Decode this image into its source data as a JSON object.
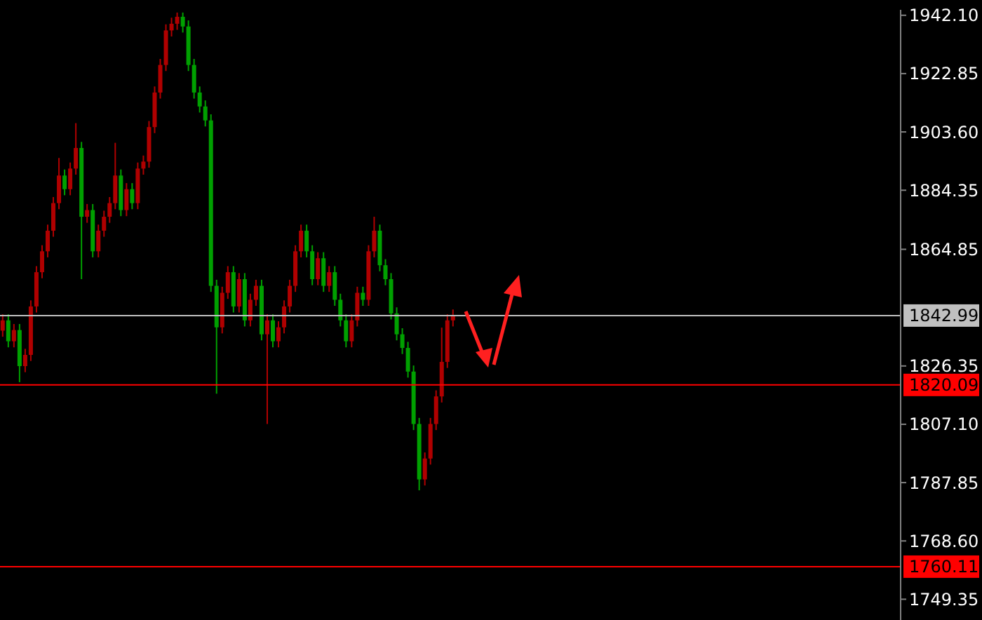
{
  "chart_data": {
    "type": "candlestick",
    "tick_labels": "y",
    "ylim": [
      1742.5,
      1943.9
    ],
    "yticks": [
      {
        "value": 1942.1,
        "label": "1942.10"
      },
      {
        "value": 1922.85,
        "label": "1922.85"
      },
      {
        "value": 1903.6,
        "label": "1903.60"
      },
      {
        "value": 1884.35,
        "label": "1884.35"
      },
      {
        "value": 1864.85,
        "label": "1864.85"
      },
      {
        "value": 1826.35,
        "label": "1826.35"
      },
      {
        "value": 1807.1,
        "label": "1807.10"
      },
      {
        "value": 1787.85,
        "label": "1787.85"
      },
      {
        "value": 1768.6,
        "label": "1768.60"
      },
      {
        "value": 1749.35,
        "label": "1749.35"
      }
    ],
    "ref_lines": [
      {
        "axis": "y",
        "value": 1842.99,
        "label": "1842.99",
        "color": "#c0c0c0"
      },
      {
        "axis": "y",
        "value": 1820.09,
        "label": "1820.09",
        "color": "#ff0000"
      },
      {
        "axis": "y",
        "value": 1760.11,
        "label": "1760.11",
        "color": "#ff0000"
      }
    ],
    "categories": [
      null,
      null,
      null,
      null,
      null,
      null,
      null,
      null,
      null,
      null,
      null,
      null,
      null,
      null,
      null,
      null,
      null,
      null,
      null,
      null,
      null,
      null,
      null,
      null,
      null,
      null,
      null,
      null,
      null,
      null,
      null,
      null,
      null,
      null,
      null,
      null,
      null,
      null,
      null,
      null,
      null,
      null,
      null,
      null,
      null,
      null,
      null,
      null,
      null,
      null,
      null,
      null,
      null,
      null,
      null,
      null,
      null,
      null,
      null,
      null,
      null,
      null,
      null,
      null,
      null,
      null,
      null,
      null,
      null,
      null,
      null,
      null,
      null,
      null,
      null,
      null,
      null,
      null,
      null,
      null,
      null,
      null,
      null,
      null,
      null,
      null,
      null,
      null,
      null,
      null,
      null,
      null,
      null,
      null,
      null,
      null,
      null,
      null,
      null,
      null,
      null,
      null,
      null,
      null,
      null,
      null,
      null,
      null,
      null,
      null,
      null,
      null,
      null,
      null,
      null,
      null,
      null,
      null,
      null,
      null,
      null,
      null,
      null,
      null,
      null,
      null,
      null,
      null,
      null,
      null,
      null,
      null,
      null,
      null,
      null,
      null,
      null,
      null,
      null,
      null,
      null,
      null,
      null,
      null,
      null,
      null,
      null,
      null,
      null,
      null,
      null,
      null,
      null,
      null,
      null,
      null,
      null,
      null,
      null,
      null
    ],
    "ohlc": [
      [
        1838,
        1843.4,
        1836,
        1841.4
      ],
      [
        1841.4,
        1843.4,
        1832.5,
        1834.5
      ],
      [
        1834.5,
        1840.2,
        1832.5,
        1838.2
      ],
      [
        1838.2,
        1840.2,
        1821,
        1826.3
      ],
      [
        1826.3,
        1832,
        1824.3,
        1830
      ],
      [
        1830,
        1848,
        1828,
        1846
      ],
      [
        1846,
        1859.3,
        1844,
        1857.3
      ],
      [
        1857.3,
        1866.2,
        1855.3,
        1864.2
      ],
      [
        1864.2,
        1873,
        1862.2,
        1871
      ],
      [
        1871,
        1882.1,
        1869,
        1880.1
      ],
      [
        1880.1,
        1895,
        1878.1,
        1889.2
      ],
      [
        1889.2,
        1891.2,
        1882.7,
        1884.7
      ],
      [
        1884.7,
        1893.5,
        1882.7,
        1891.5
      ],
      [
        1891.5,
        1906.5,
        1889.5,
        1898.3
      ],
      [
        1898.3,
        1900.3,
        1855,
        1875.6
      ],
      [
        1875.6,
        1879.8,
        1873.6,
        1877.8
      ],
      [
        1877.8,
        1879.8,
        1862.2,
        1864.2
      ],
      [
        1864.2,
        1873,
        1862.2,
        1871
      ],
      [
        1871,
        1877.6,
        1869,
        1875.6
      ],
      [
        1875.6,
        1882.1,
        1873.6,
        1880.1
      ],
      [
        1880.1,
        1900,
        1878.1,
        1889.2
      ],
      [
        1889.2,
        1891.2,
        1875.8,
        1877.8
      ],
      [
        1877.8,
        1886.7,
        1875.8,
        1884.7
      ],
      [
        1884.7,
        1886.7,
        1878.1,
        1880.1
      ],
      [
        1880.1,
        1893.5,
        1878.1,
        1891.5
      ],
      [
        1891.5,
        1895.8,
        1889.5,
        1893.8
      ],
      [
        1893.8,
        1907.2,
        1891.8,
        1905.2
      ],
      [
        1905.2,
        1918.6,
        1903.2,
        1916.6
      ],
      [
        1916.6,
        1927.7,
        1914.6,
        1925.7
      ],
      [
        1925.7,
        1939.1,
        1923.7,
        1937.1
      ],
      [
        1937.1,
        1941.3,
        1935.1,
        1939.3
      ],
      [
        1939.3,
        1943,
        1937.3,
        1941.6
      ],
      [
        1941.6,
        1943,
        1936.4,
        1938.4
      ],
      [
        1938.4,
        1940.4,
        1923.7,
        1925.7
      ],
      [
        1925.7,
        1927.7,
        1914.6,
        1916.6
      ],
      [
        1916.6,
        1918.6,
        1910,
        1912
      ],
      [
        1912,
        1914,
        1905.4,
        1907.4
      ],
      [
        1907.4,
        1909.4,
        1850.8,
        1852.8
      ],
      [
        1852.8,
        1854.8,
        1817.2,
        1839.1
      ],
      [
        1839.1,
        1852.5,
        1837.1,
        1850.5
      ],
      [
        1850.5,
        1859.3,
        1848.5,
        1857.3
      ],
      [
        1857.3,
        1859.3,
        1844,
        1846
      ],
      [
        1846,
        1857,
        1844,
        1855
      ],
      [
        1855,
        1857,
        1839.4,
        1841.4
      ],
      [
        1841.4,
        1850.2,
        1839.4,
        1848.2
      ],
      [
        1848.2,
        1854.8,
        1846.2,
        1852.8
      ],
      [
        1852.8,
        1854.8,
        1834.8,
        1836.8
      ],
      [
        1836.8,
        1843.4,
        1807.2,
        1841.4
      ],
      [
        1841.4,
        1843.4,
        1832.5,
        1834.5
      ],
      [
        1834.5,
        1841.1,
        1832.5,
        1839.1
      ],
      [
        1839.1,
        1848,
        1837.1,
        1846
      ],
      [
        1846,
        1854.8,
        1844,
        1852.8
      ],
      [
        1852.8,
        1866.2,
        1850.8,
        1864.2
      ],
      [
        1864.2,
        1873,
        1862.2,
        1871
      ],
      [
        1871,
        1873,
        1862.2,
        1864.2
      ],
      [
        1864.2,
        1866.2,
        1853,
        1855
      ],
      [
        1855,
        1863.9,
        1853,
        1861.9
      ],
      [
        1861.9,
        1863.9,
        1850.8,
        1852.8
      ],
      [
        1852.8,
        1859.3,
        1850.8,
        1857.3
      ],
      [
        1857.3,
        1859.3,
        1846.2,
        1848.2
      ],
      [
        1848.2,
        1850.2,
        1839.4,
        1841.4
      ],
      [
        1841.4,
        1843.4,
        1832.5,
        1834.5
      ],
      [
        1834.5,
        1843.4,
        1832.5,
        1841.4
      ],
      [
        1841.4,
        1852.5,
        1839.4,
        1850.5
      ],
      [
        1850.5,
        1852.5,
        1846.2,
        1848.2
      ],
      [
        1848.2,
        1866.2,
        1846.2,
        1864.2
      ],
      [
        1864.2,
        1875.6,
        1862.2,
        1871
      ],
      [
        1871,
        1873,
        1857.6,
        1859.6
      ],
      [
        1859.6,
        1861.6,
        1853,
        1855
      ],
      [
        1855,
        1857,
        1841.7,
        1843.7
      ],
      [
        1843.7,
        1845.7,
        1834.8,
        1836.8
      ],
      [
        1836.8,
        1838.8,
        1830.3,
        1832.3
      ],
      [
        1832.3,
        1834.3,
        1822.5,
        1824.5
      ],
      [
        1824.5,
        1826.5,
        1805.2,
        1807.2
      ],
      [
        1807.2,
        1809.2,
        1785.3,
        1788.9
      ],
      [
        1788.9,
        1797.8,
        1786.9,
        1795.8
      ],
      [
        1795.8,
        1809.2,
        1793.8,
        1807.2
      ],
      [
        1807.2,
        1818.3,
        1805.2,
        1816.3
      ],
      [
        1816.3,
        1839,
        1814.3,
        1827.7
      ],
      [
        1827.7,
        1843.4,
        1825.7,
        1841.4
      ],
      [
        1841.4,
        1845,
        1839.4,
        1842.99
      ],
      null,
      null,
      null,
      null,
      null,
      null,
      null,
      null,
      null,
      null,
      null,
      null,
      null,
      null,
      null,
      null,
      null,
      null,
      null,
      null,
      null,
      null,
      null,
      null,
      null,
      null,
      null,
      null,
      null,
      null,
      null,
      null,
      null,
      null,
      null,
      null,
      null,
      null,
      null,
      null,
      null,
      null,
      null,
      null,
      null,
      null,
      null,
      null,
      null,
      null,
      null,
      null,
      null,
      null,
      null,
      null,
      null,
      null,
      null,
      null,
      null,
      null,
      null,
      null,
      null,
      null,
      null,
      null,
      null,
      null,
      null,
      null,
      null,
      null,
      null,
      null,
      null,
      null,
      null
    ],
    "colors": [
      "#b00000",
      "#00a000",
      "#b00000",
      "#00a000",
      "#b00000",
      "#b00000",
      "#b00000",
      "#b00000",
      "#b00000",
      "#b00000",
      "#b00000",
      "#00a000",
      "#b00000",
      "#b00000",
      "#00a000",
      "#b00000",
      "#00a000",
      "#b00000",
      "#b00000",
      "#b00000",
      "#b00000",
      "#00a000",
      "#b00000",
      "#00a000",
      "#b00000",
      "#b00000",
      "#b00000",
      "#b00000",
      "#b00000",
      "#b00000",
      "#b00000",
      "#b00000",
      "#00a000",
      "#00a000",
      "#00a000",
      "#00a000",
      "#00a000",
      "#00a000",
      "#00a000",
      "#b00000",
      "#b00000",
      "#00a000",
      "#b00000",
      "#00a000",
      "#b00000",
      "#b00000",
      "#00a000",
      "#b00000",
      "#00a000",
      "#b00000",
      "#b00000",
      "#b00000",
      "#b00000",
      "#b00000",
      "#00a000",
      "#00a000",
      "#b00000",
      "#00a000",
      "#b00000",
      "#00a000",
      "#00a000",
      "#00a000",
      "#b00000",
      "#b00000",
      "#00a000",
      "#b00000",
      "#b00000",
      "#00a000",
      "#00a000",
      "#00a000",
      "#00a000",
      "#00a000",
      "#00a000",
      "#00a000",
      "#00a000",
      "#b00000",
      "#b00000",
      "#b00000",
      "#b00000",
      "#b00000",
      "#b00000",
      null,
      null,
      null,
      null,
      null,
      null,
      null,
      null,
      null,
      null,
      null,
      null,
      null,
      null,
      null,
      null,
      null,
      null,
      null,
      null,
      null,
      null,
      null,
      null,
      null,
      null,
      null,
      null,
      null,
      null,
      null,
      null,
      null,
      null,
      null,
      null,
      null,
      null,
      null,
      null,
      null,
      null,
      null,
      null,
      null,
      null,
      null,
      null,
      null,
      null,
      null,
      null,
      null,
      null,
      null,
      null,
      null,
      null,
      null,
      null,
      null,
      null,
      null,
      null,
      null,
      null,
      null,
      null,
      null,
      null,
      null,
      null,
      null,
      null,
      null,
      null,
      null,
      null,
      null
    ]
  }
}
